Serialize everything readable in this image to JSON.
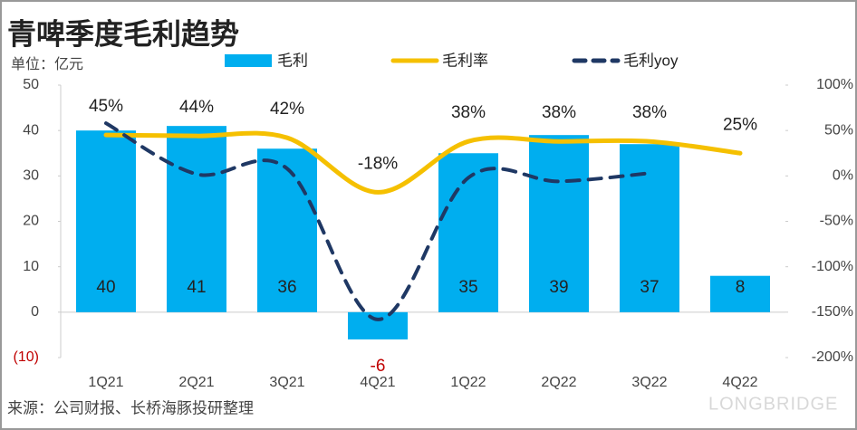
{
  "chart_data": {
    "type": "bar-line",
    "title": "青啤季度毛利趋势",
    "unit_label": "单位：亿元",
    "source": "来源：公司财报、长桥海豚投研整理",
    "watermark": "LONGBRIDGE",
    "categories": [
      "1Q21",
      "2Q21",
      "3Q21",
      "4Q21",
      "1Q22",
      "2Q22",
      "3Q22",
      "4Q22"
    ],
    "ylim": [
      -10,
      50
    ],
    "yticks": [
      50,
      40,
      30,
      20,
      10,
      0,
      {
        "value": -10,
        "label": "(10)"
      }
    ],
    "y2lim": [
      -200,
      100
    ],
    "y2ticks": [
      {
        "value": 100,
        "label": "100%"
      },
      {
        "value": 50,
        "label": "50%"
      },
      {
        "value": 0,
        "label": "0%"
      },
      {
        "value": -50,
        "label": "-50%"
      },
      {
        "value": -100,
        "label": "-100%"
      },
      {
        "value": -150,
        "label": "-150%"
      },
      {
        "value": -200,
        "label": "-200%"
      }
    ],
    "legend": "top",
    "series": [
      {
        "name": "毛利",
        "type": "bar",
        "color": "#00aeef",
        "values": [
          40,
          41,
          36,
          -6,
          35,
          39,
          37,
          8
        ]
      },
      {
        "name": "毛利率",
        "type": "line",
        "axis": "y2",
        "color": "#f5c000",
        "dashed": false,
        "values": [
          45,
          44,
          42,
          -18,
          38,
          38,
          38,
          25
        ],
        "value_labels": [
          "45%",
          "44%",
          "42%",
          "-18%",
          "38%",
          "38%",
          "38%",
          "25%"
        ]
      },
      {
        "name": "毛利yoy",
        "type": "line",
        "axis": "y2",
        "color": "#1f3864",
        "dashed": true,
        "values": [
          58,
          2,
          8,
          -158,
          -2,
          -6,
          3,
          null
        ]
      }
    ]
  }
}
